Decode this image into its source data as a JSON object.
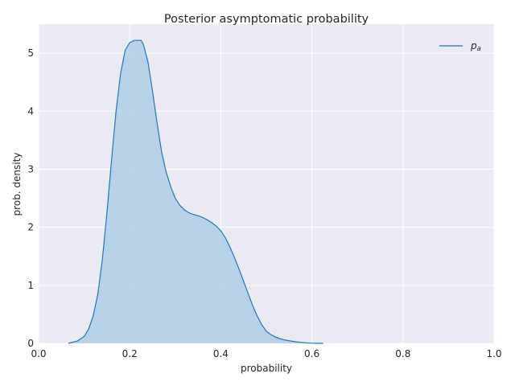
{
  "chart_data": {
    "type": "area",
    "title": "Posterior asymptomatic probability",
    "xlabel": "probability",
    "ylabel": "prob. density",
    "xlim": [
      0.0,
      1.0
    ],
    "ylim": [
      0,
      5.5
    ],
    "xticks": [
      "0.0",
      "0.2",
      "0.4",
      "0.6",
      "0.8",
      "1.0"
    ],
    "yticks": [
      "0",
      "1",
      "2",
      "3",
      "4",
      "5"
    ],
    "grid": true,
    "legend_position": "top-right",
    "series": [
      {
        "name": "p_a",
        "legend_main": "p",
        "legend_sub": "a",
        "color": "#1f77b4",
        "fill_color": "#a8c8e4",
        "x": [
          0.065,
          0.085,
          0.1,
          0.11,
          0.12,
          0.13,
          0.14,
          0.15,
          0.16,
          0.17,
          0.18,
          0.19,
          0.2,
          0.21,
          0.22,
          0.225,
          0.23,
          0.24,
          0.25,
          0.26,
          0.27,
          0.28,
          0.29,
          0.3,
          0.31,
          0.32,
          0.33,
          0.34,
          0.35,
          0.36,
          0.37,
          0.38,
          0.39,
          0.4,
          0.41,
          0.42,
          0.43,
          0.44,
          0.45,
          0.46,
          0.47,
          0.48,
          0.49,
          0.5,
          0.51,
          0.52,
          0.53,
          0.54,
          0.55,
          0.56,
          0.57,
          0.58,
          0.59,
          0.6,
          0.61,
          0.625
        ],
        "y": [
          0.0,
          0.04,
          0.12,
          0.25,
          0.48,
          0.85,
          1.45,
          2.25,
          3.15,
          4.0,
          4.65,
          5.05,
          5.18,
          5.22,
          5.22,
          5.22,
          5.15,
          4.85,
          4.35,
          3.8,
          3.3,
          2.95,
          2.7,
          2.5,
          2.38,
          2.3,
          2.25,
          2.22,
          2.2,
          2.17,
          2.13,
          2.08,
          2.02,
          1.94,
          1.82,
          1.66,
          1.48,
          1.28,
          1.07,
          0.86,
          0.65,
          0.47,
          0.32,
          0.21,
          0.15,
          0.11,
          0.08,
          0.06,
          0.045,
          0.033,
          0.023,
          0.015,
          0.008,
          0.004,
          0.002,
          0.0
        ]
      }
    ]
  }
}
